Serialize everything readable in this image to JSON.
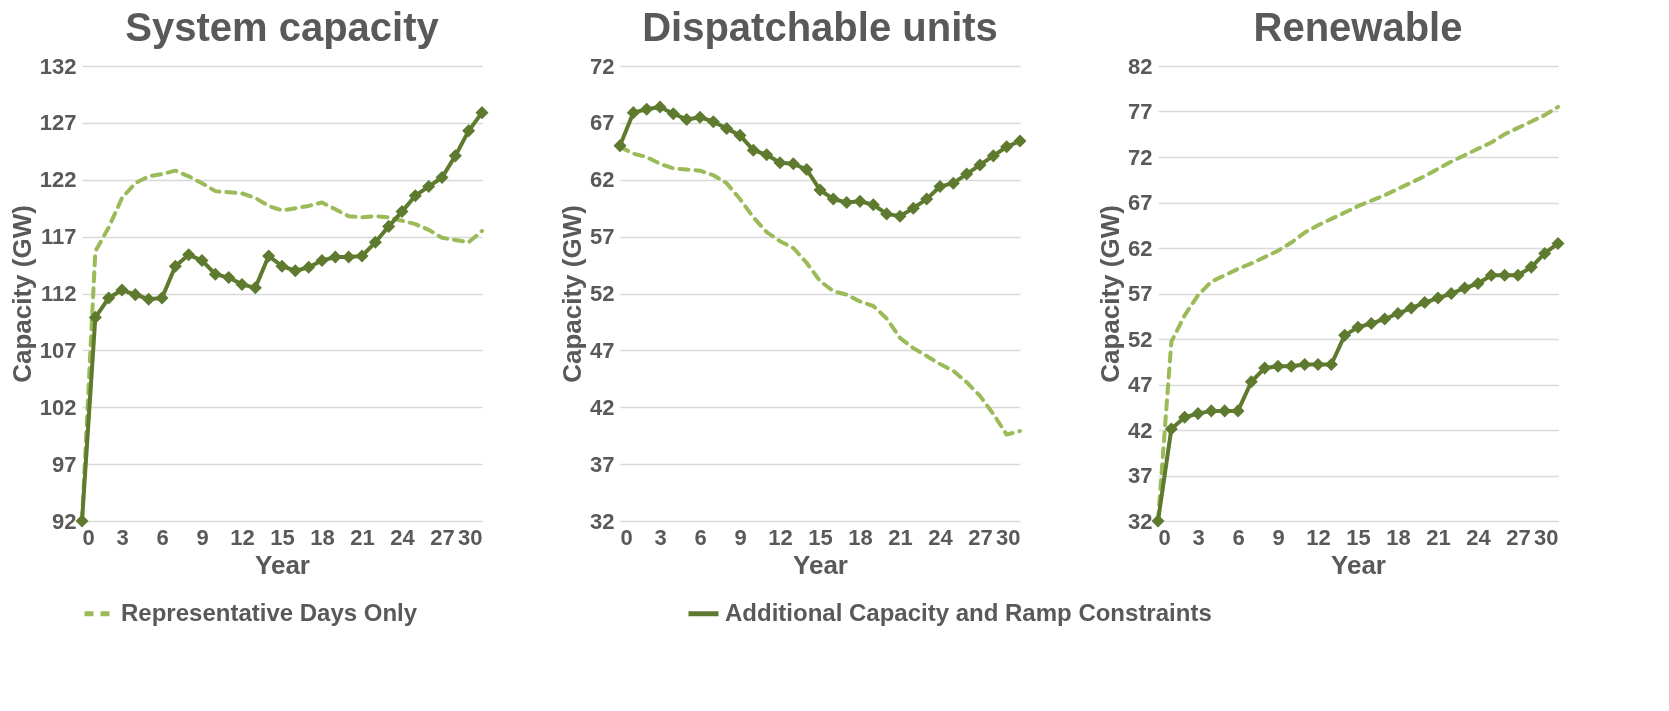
{
  "chart_data": [
    {
      "type": "line",
      "title": "System capacity",
      "xlabel": "Year",
      "ylabel": "Capacity (GW)",
      "x": [
        0,
        1,
        2,
        3,
        4,
        5,
        6,
        7,
        8,
        9,
        10,
        11,
        12,
        13,
        14,
        15,
        16,
        17,
        18,
        19,
        20,
        21,
        22,
        23,
        24,
        25,
        26,
        27,
        28,
        29,
        30
      ],
      "xlim": [
        0,
        30
      ],
      "xticks": [
        0,
        3,
        6,
        9,
        12,
        15,
        18,
        21,
        24,
        27,
        30
      ],
      "ylim": [
        92,
        132
      ],
      "yticks": [
        92,
        97,
        102,
        107,
        112,
        117,
        122,
        127,
        132
      ],
      "grid": "y",
      "legend": "bottom",
      "series": [
        {
          "name": "Representative Days Only",
          "color": "#9bbb59",
          "line_style": "dashed",
          "marker": "none",
          "values": [
            92,
            115.7,
            117.8,
            120.4,
            121.7,
            122.3,
            122.5,
            122.8,
            122.3,
            121.7,
            121.0,
            120.9,
            120.8,
            120.4,
            119.7,
            119.3,
            119.5,
            119.7,
            120.0,
            119.4,
            118.8,
            118.7,
            118.8,
            118.7,
            118.4,
            118.1,
            117.6,
            116.9,
            116.7,
            116.5,
            117.5
          ]
        },
        {
          "name": "Additional Capacity and Ramp Constraints",
          "color": "#5e7a2e",
          "line_style": "solid",
          "marker": "diamond",
          "values": [
            92,
            109.9,
            111.6,
            112.3,
            111.9,
            111.5,
            111.6,
            114.4,
            115.4,
            114.9,
            113.7,
            113.4,
            112.8,
            112.5,
            115.3,
            114.4,
            114.0,
            114.3,
            114.9,
            115.2,
            115.2,
            115.3,
            116.5,
            117.9,
            119.2,
            120.6,
            121.4,
            122.2,
            124.1,
            126.3,
            127.9
          ]
        }
      ]
    },
    {
      "type": "line",
      "title": "Dispatchable units",
      "xlabel": "Year",
      "ylabel": "Capacity (GW)",
      "x": [
        0,
        1,
        2,
        3,
        4,
        5,
        6,
        7,
        8,
        9,
        10,
        11,
        12,
        13,
        14,
        15,
        16,
        17,
        18,
        19,
        20,
        21,
        22,
        23,
        24,
        25,
        26,
        27,
        28,
        29,
        30
      ],
      "xlim": [
        0,
        30
      ],
      "xticks": [
        0,
        3,
        6,
        9,
        12,
        15,
        18,
        21,
        24,
        27,
        30
      ],
      "ylim": [
        32,
        72
      ],
      "yticks": [
        32,
        37,
        42,
        47,
        52,
        57,
        62,
        67,
        72
      ],
      "grid": "y",
      "legend": "bottom",
      "series": [
        {
          "name": "Representative Days Only",
          "color": "#9bbb59",
          "line_style": "dashed",
          "marker": "none",
          "values": [
            64.9,
            64.3,
            64.0,
            63.4,
            63.0,
            62.9,
            62.8,
            62.4,
            61.7,
            60.3,
            58.7,
            57.4,
            56.6,
            56.0,
            54.7,
            53.1,
            52.2,
            51.9,
            51.3,
            50.9,
            49.8,
            48.1,
            47.2,
            46.5,
            45.8,
            45.2,
            44.2,
            43.0,
            41.4,
            39.6,
            39.9
          ]
        },
        {
          "name": "Additional Capacity and Ramp Constraints",
          "color": "#5e7a2e",
          "line_style": "solid",
          "marker": "diamond",
          "values": [
            65.0,
            67.9,
            68.2,
            68.4,
            67.8,
            67.3,
            67.5,
            67.1,
            66.5,
            65.9,
            64.6,
            64.2,
            63.5,
            63.4,
            62.9,
            61.1,
            60.3,
            60.0,
            60.1,
            59.8,
            59.0,
            58.8,
            59.5,
            60.3,
            61.4,
            61.7,
            62.5,
            63.3,
            64.1,
            64.9,
            65.4
          ]
        }
      ]
    },
    {
      "type": "line",
      "title": "Renewable",
      "xlabel": "Year",
      "ylabel": "Capacity (GW)",
      "x": [
        0,
        1,
        2,
        3,
        4,
        5,
        6,
        7,
        8,
        9,
        10,
        11,
        12,
        13,
        14,
        15,
        16,
        17,
        18,
        19,
        20,
        21,
        22,
        23,
        24,
        25,
        26,
        27,
        28,
        29,
        30
      ],
      "xlim": [
        0,
        30
      ],
      "xticks": [
        0,
        3,
        6,
        9,
        12,
        15,
        18,
        21,
        24,
        27,
        30
      ],
      "ylim": [
        32,
        82
      ],
      "yticks": [
        32,
        37,
        42,
        47,
        52,
        57,
        62,
        67,
        72,
        77,
        82
      ],
      "grid": "y",
      "legend": "bottom",
      "series": [
        {
          "name": "Representative Days Only",
          "color": "#9bbb59",
          "line_style": "dashed",
          "marker": "none",
          "values": [
            32,
            51.7,
            54.6,
            56.8,
            58.3,
            59.0,
            59.7,
            60.3,
            61.0,
            61.7,
            62.6,
            63.7,
            64.5,
            65.2,
            65.9,
            66.6,
            67.2,
            67.8,
            68.5,
            69.2,
            69.9,
            70.7,
            71.5,
            72.2,
            72.9,
            73.6,
            74.5,
            75.2,
            75.9,
            76.6,
            77.5
          ]
        },
        {
          "name": "Additional Capacity and Ramp Constraints",
          "color": "#5e7a2e",
          "line_style": "solid",
          "marker": "diamond",
          "values": [
            32,
            42.1,
            43.4,
            43.8,
            44.1,
            44.1,
            44.1,
            47.3,
            48.8,
            49.0,
            49.0,
            49.2,
            49.2,
            49.2,
            52.4,
            53.3,
            53.7,
            54.2,
            54.8,
            55.4,
            56.0,
            56.5,
            57.0,
            57.6,
            58.1,
            59.0,
            59.0,
            59.0,
            59.9,
            61.4,
            62.5
          ]
        }
      ]
    }
  ]
}
